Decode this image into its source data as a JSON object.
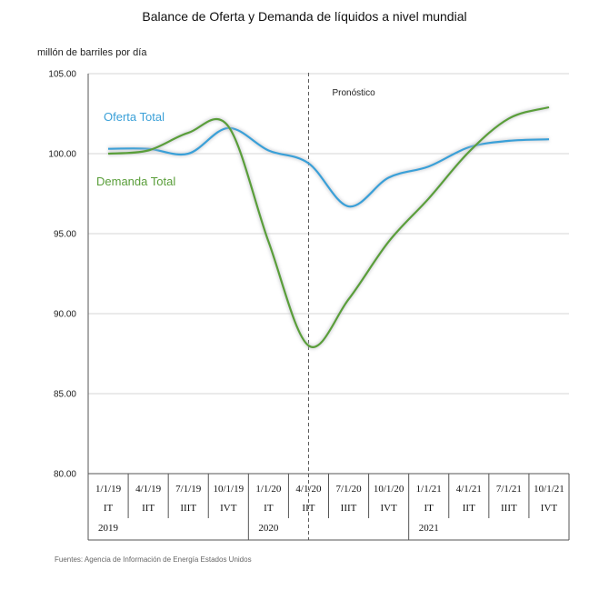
{
  "page": {
    "title": "Balance de Oferta y Demanda de líquidos a nivel mundial",
    "y_unit": "millón de barriles por día",
    "source": "Fuentes: Agencia de Información de Energía Estados Unidos",
    "forecast_label": "Pronóstico"
  },
  "chart_data": {
    "type": "line",
    "title": "Balance de Oferta y Demanda de líquidos a nivel mundial",
    "ylabel": "millón de barriles por día",
    "ylim": [
      80,
      105
    ],
    "y_ticks": [
      "105.00",
      "100.00",
      "95.00",
      "90.00",
      "85.00",
      "80.00"
    ],
    "y_tick_values": [
      105,
      100,
      95,
      90,
      85,
      80
    ],
    "categories": [
      "1/1/19",
      "4/1/19",
      "7/1/19",
      "10/1/19",
      "1/1/20",
      "4/1/20",
      "7/1/20",
      "10/1/20",
      "1/1/21",
      "4/1/21",
      "7/1/21",
      "10/1/21"
    ],
    "quarters": [
      "IT",
      "IIT",
      "IIIT",
      "IVT",
      "IT",
      "IIT",
      "IIIT",
      "IVT",
      "IT",
      "IIT",
      "IIIT",
      "IVT"
    ],
    "years": [
      {
        "label": "2019",
        "index": 0
      },
      {
        "label": "2020",
        "index": 4
      },
      {
        "label": "2021",
        "index": 8
      }
    ],
    "forecast_from_index": 5,
    "grid": true,
    "series": [
      {
        "name": "Oferta Total",
        "color": "#3aa0d8",
        "values": [
          100.3,
          100.3,
          100.0,
          101.6,
          100.2,
          99.4,
          96.7,
          98.5,
          99.2,
          100.4,
          100.8,
          100.9
        ]
      },
      {
        "name": "Demanda Total",
        "color": "#5a9e3a",
        "values": [
          100.0,
          100.2,
          101.3,
          101.7,
          94.5,
          88.0,
          90.9,
          94.5,
          97.2,
          100.1,
          102.2,
          102.9
        ]
      }
    ]
  }
}
